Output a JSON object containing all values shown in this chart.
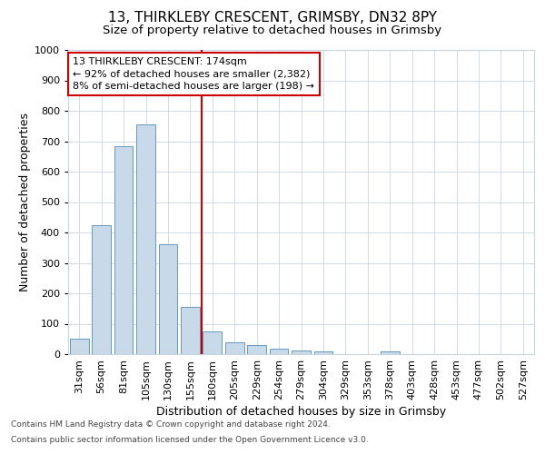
{
  "title1": "13, THIRKLEBY CRESCENT, GRIMSBY, DN32 8PY",
  "title2": "Size of property relative to detached houses in Grimsby",
  "xlabel": "Distribution of detached houses by size in Grimsby",
  "ylabel": "Number of detached properties",
  "categories": [
    "31sqm",
    "56sqm",
    "81sqm",
    "105sqm",
    "130sqm",
    "155sqm",
    "180sqm",
    "205sqm",
    "229sqm",
    "254sqm",
    "279sqm",
    "304sqm",
    "329sqm",
    "353sqm",
    "378sqm",
    "403sqm",
    "428sqm",
    "453sqm",
    "477sqm",
    "502sqm",
    "527sqm"
  ],
  "values": [
    50,
    425,
    685,
    755,
    360,
    155,
    75,
    40,
    30,
    18,
    12,
    8,
    0,
    0,
    8,
    0,
    0,
    0,
    0,
    0,
    0
  ],
  "bar_color": "#c8daea",
  "bar_edge_color": "#6699bb",
  "vline_color": "#cc0000",
  "annotation_lines": [
    "13 THIRKLEBY CRESCENT: 174sqm",
    "← 92% of detached houses are smaller (2,382)",
    "8% of semi-detached houses are larger (198) →"
  ],
  "ylim": [
    0,
    1000
  ],
  "yticks": [
    0,
    100,
    200,
    300,
    400,
    500,
    600,
    700,
    800,
    900,
    1000
  ],
  "footer1": "Contains HM Land Registry data © Crown copyright and database right 2024.",
  "footer2": "Contains public sector information licensed under the Open Government Licence v3.0.",
  "bg_color": "#ffffff",
  "grid_color": "#c8d4e0",
  "title1_fontsize": 11,
  "title2_fontsize": 9.5,
  "ylabel_fontsize": 9,
  "xlabel_fontsize": 9,
  "tick_fontsize": 8,
  "annot_fontsize": 8,
  "footer_fontsize": 6.5
}
